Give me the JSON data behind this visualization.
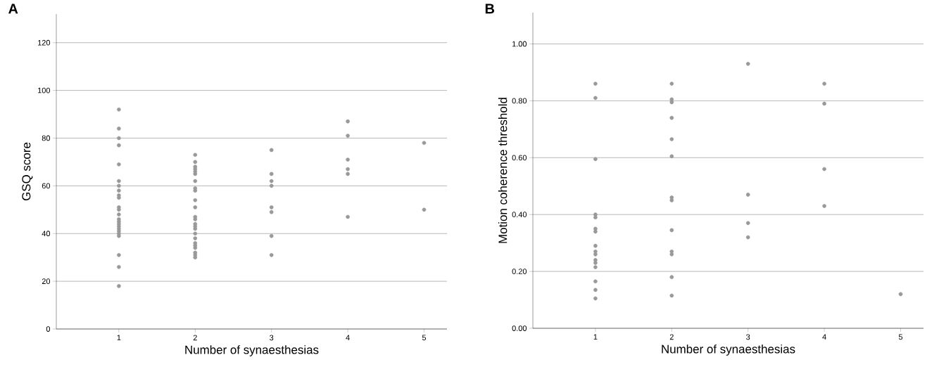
{
  "chart_data": [
    {
      "type": "scatter",
      "title": "A",
      "xlabel": "Number of synaesthesias",
      "ylabel": "GSQ score",
      "xlim": [
        0.18,
        5.3
      ],
      "xticks": [
        1,
        2,
        3,
        4,
        5
      ],
      "ylim": [
        0,
        132
      ],
      "yticks": [
        0,
        20,
        40,
        60,
        80,
        100,
        120
      ],
      "grid": "y",
      "marker": "circle",
      "series": [
        {
          "color": "#999999",
          "x": [
            1,
            1,
            1,
            1,
            1,
            1,
            1,
            1,
            1,
            1,
            1,
            1,
            1,
            1,
            1,
            1,
            1,
            1,
            1,
            1,
            1,
            1,
            1,
            1,
            2,
            2,
            2,
            2,
            2,
            2,
            2,
            2,
            2,
            2,
            2,
            2,
            2,
            2,
            2,
            2,
            2,
            2,
            2,
            2,
            2,
            2,
            2,
            2,
            3,
            3,
            3,
            3,
            3,
            3,
            3,
            3,
            4,
            4,
            4,
            4,
            4,
            4,
            5,
            5
          ],
          "values": [
            92,
            84,
            80,
            77,
            69,
            62,
            60,
            58,
            56,
            55,
            51,
            50,
            48,
            46,
            45,
            44,
            43,
            42,
            41,
            40,
            39,
            31,
            26,
            18,
            73,
            70,
            68,
            67,
            66,
            65,
            62,
            59,
            58,
            54,
            51,
            47,
            46,
            44,
            43,
            42,
            40,
            38,
            36,
            35,
            34,
            32,
            31,
            30,
            75,
            65,
            62,
            60,
            51,
            49,
            39,
            31,
            87,
            81,
            71,
            67,
            65,
            47,
            78,
            50
          ]
        }
      ]
    },
    {
      "type": "scatter",
      "title": "B",
      "xlabel": "Number of synaesthesias",
      "ylabel": "Motion coherence threshold",
      "xlim": [
        0.18,
        5.3
      ],
      "xticks": [
        1,
        2,
        3,
        4,
        5
      ],
      "ylim": [
        0,
        1.11
      ],
      "yticks": [
        {
          "value": 0,
          "label": "0.00"
        },
        {
          "value": 0.2,
          "label": "0.20"
        },
        {
          "value": 0.4,
          "label": "0.40"
        },
        {
          "value": 0.6,
          "label": "0.60"
        },
        {
          "value": 0.8,
          "label": "0.80"
        },
        {
          "value": 1.0,
          "label": "1.00"
        }
      ],
      "grid": "y",
      "marker": "circle",
      "series": [
        {
          "color": "#999999",
          "x": [
            1,
            1,
            1,
            1,
            1,
            1,
            1,
            1,
            1,
            1,
            1,
            1,
            1,
            1,
            1,
            1,
            2,
            2,
            2,
            2,
            2,
            2,
            2,
            2,
            2,
            2,
            2,
            2,
            2,
            3,
            3,
            3,
            3,
            4,
            4,
            4,
            4,
            5
          ],
          "values": [
            0.86,
            0.81,
            0.595,
            0.4,
            0.39,
            0.35,
            0.34,
            0.29,
            0.27,
            0.26,
            0.24,
            0.23,
            0.215,
            0.165,
            0.135,
            0.105,
            0.86,
            0.805,
            0.795,
            0.74,
            0.665,
            0.605,
            0.46,
            0.45,
            0.345,
            0.27,
            0.26,
            0.18,
            0.115,
            0.93,
            0.47,
            0.37,
            0.32,
            0.86,
            0.79,
            0.56,
            0.43,
            0.12
          ]
        }
      ]
    }
  ]
}
